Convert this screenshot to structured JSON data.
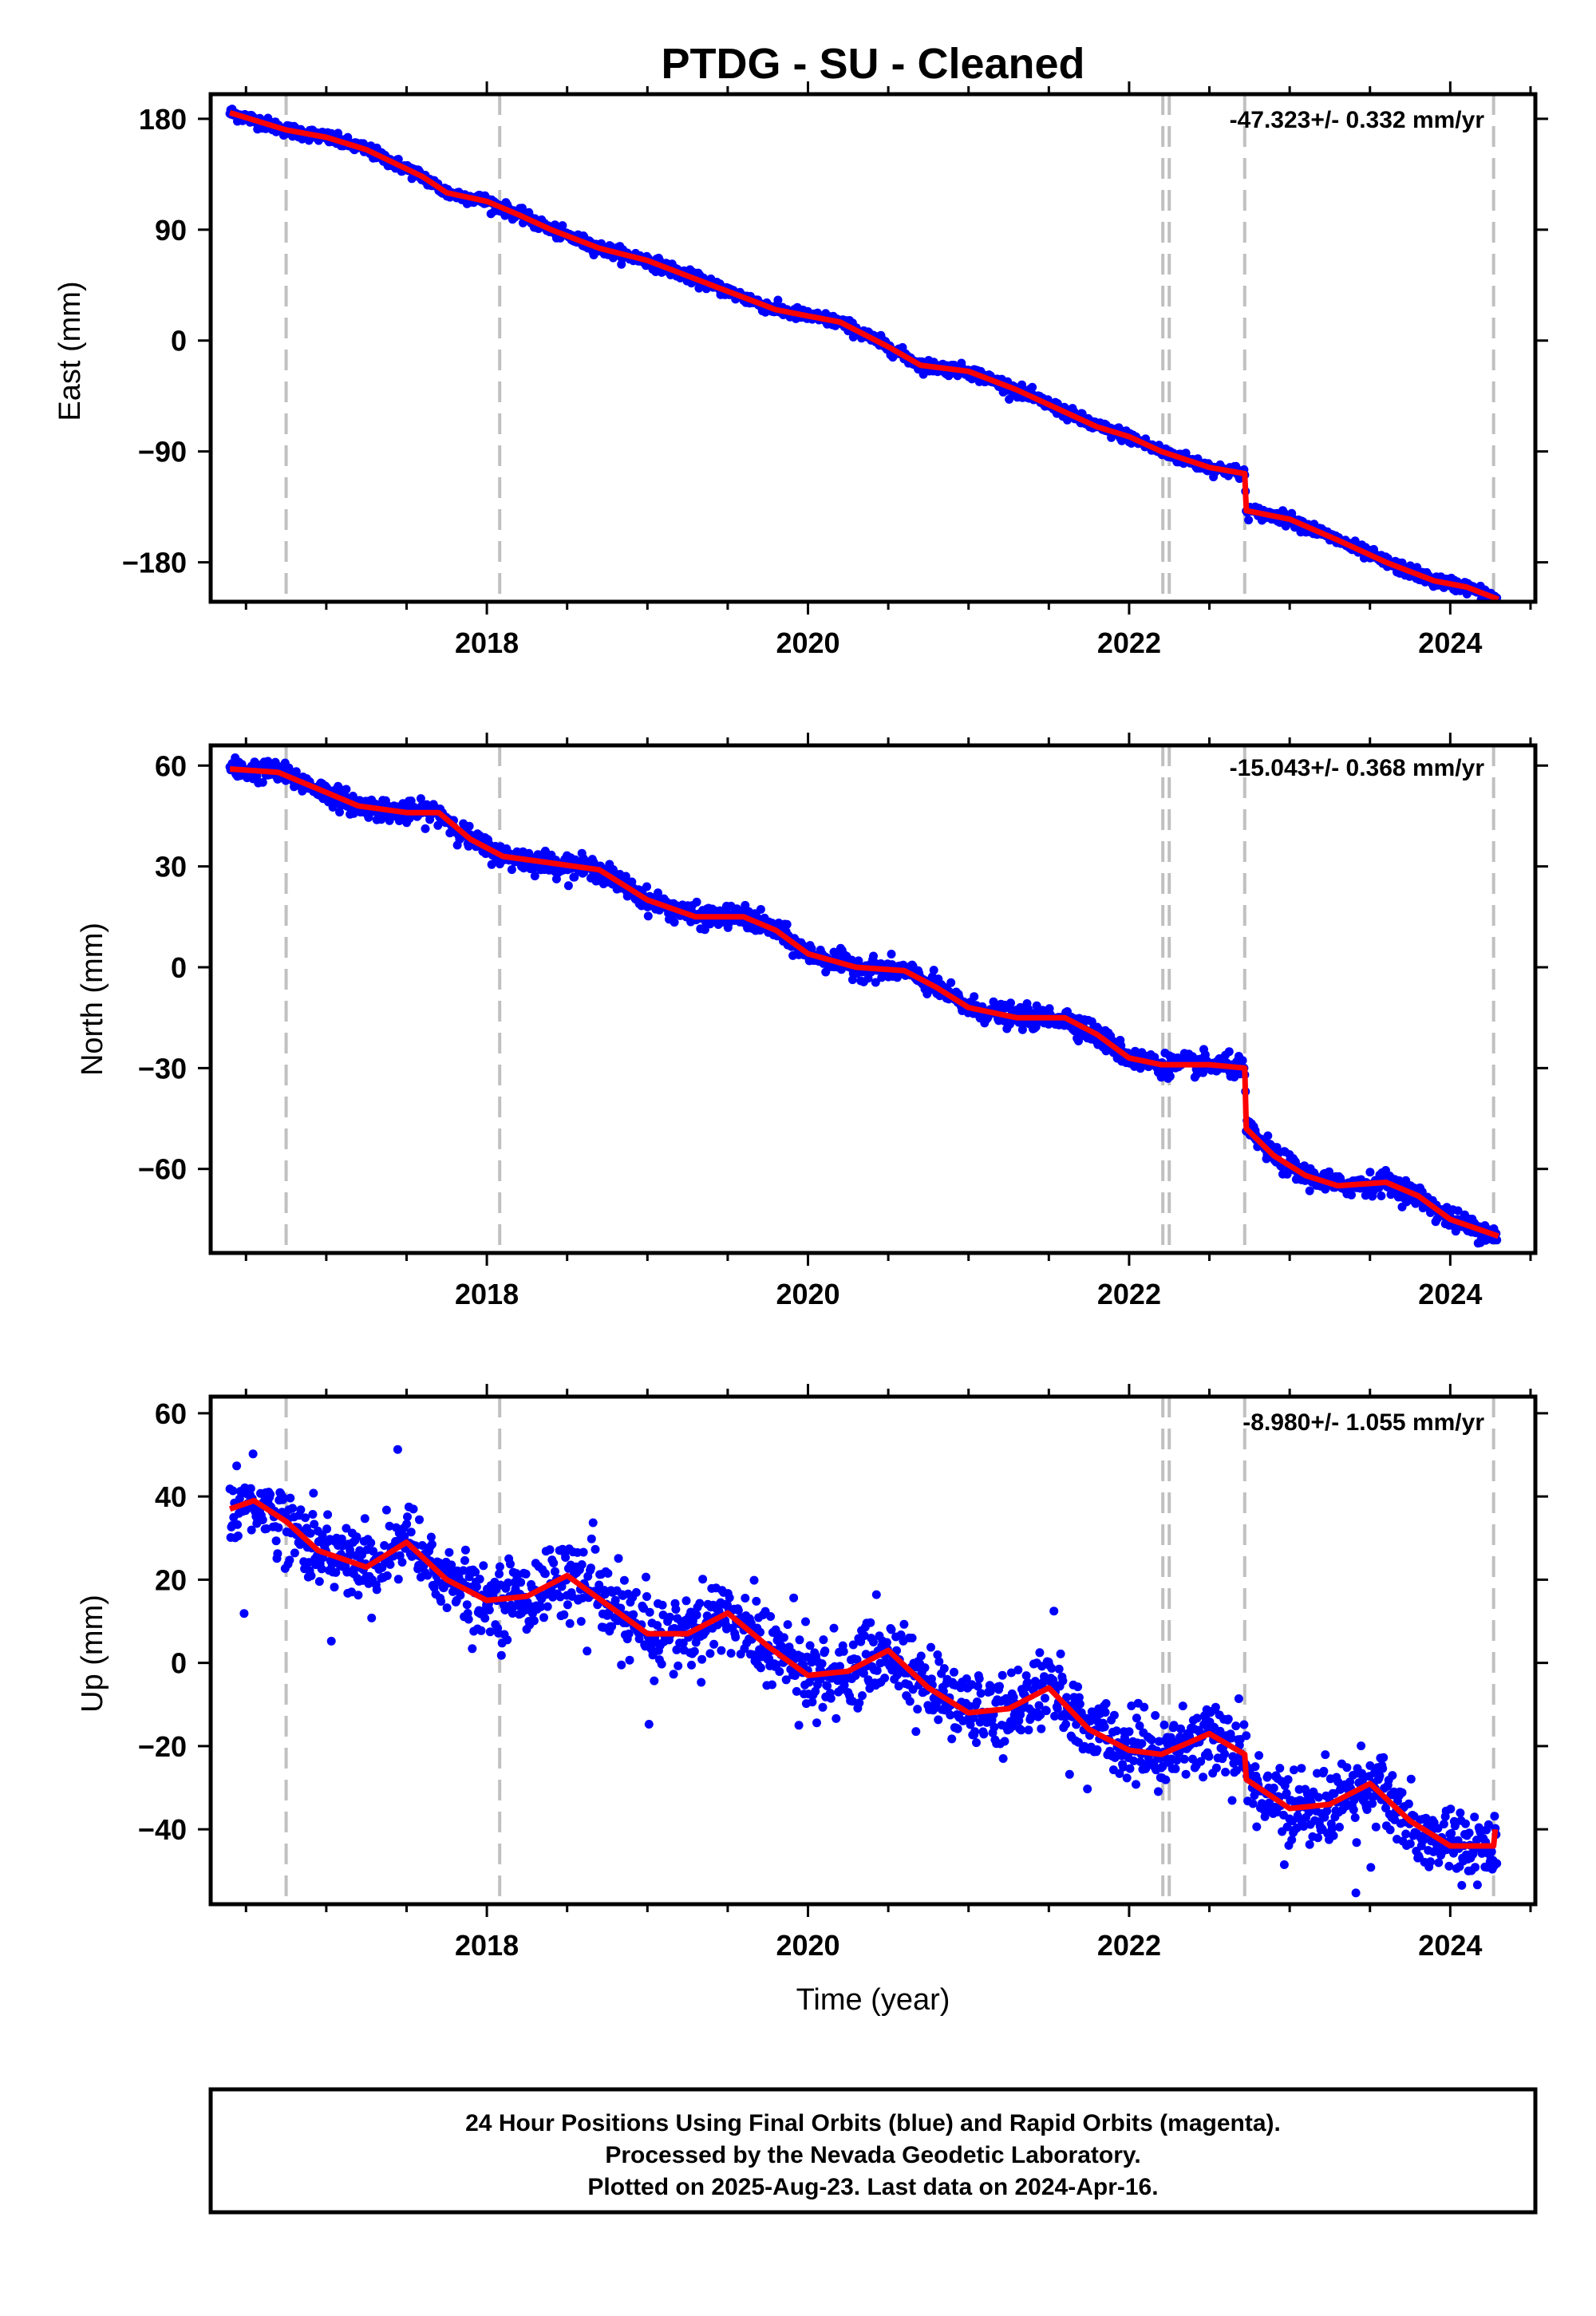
{
  "figure": {
    "title": "PTDG  - SU - Cleaned",
    "xlabel": "Time (year)",
    "footer": [
      "24 Hour Positions Using Final Orbits (blue) and Rapid Orbits (magenta).",
      "Processed by the Nevada Geodetic Laboratory.",
      "Plotted on 2025-Aug-23. Last data on 2024-Apr-16."
    ],
    "colors": {
      "points": "#0000ff",
      "fit": "#ff0000",
      "steps": "#c0c0c0",
      "frame": "#000000"
    }
  },
  "chart_data": [
    {
      "type": "scatter",
      "component": "East",
      "ylabel": "East (mm)",
      "rate_label": "-47.323+/- 0.332 mm/yr",
      "xlim": [
        2016.28,
        2024.53
      ],
      "ylim": [
        -212,
        200
      ],
      "xticks": [
        2018,
        2020,
        2022,
        2024
      ],
      "yticks": [
        180,
        90,
        0,
        -90,
        -180
      ],
      "ytick_labels": [
        "180",
        "90",
        "0",
        "−90",
        "−180"
      ],
      "step_epochs": [
        2016.75,
        2018.08,
        2022.21,
        2022.25,
        2022.72,
        2024.27
      ],
      "fit_knots": [
        [
          2016.4,
          185
        ],
        [
          2016.75,
          171
        ],
        [
          2017.0,
          165
        ],
        [
          2017.25,
          155
        ],
        [
          2017.6,
          133
        ],
        [
          2017.75,
          120
        ],
        [
          2018.0,
          113
        ],
        [
          2018.2,
          102
        ],
        [
          2018.4,
          90
        ],
        [
          2018.7,
          75
        ],
        [
          2019.0,
          65
        ],
        [
          2019.3,
          50
        ],
        [
          2019.6,
          35
        ],
        [
          2019.8,
          25
        ],
        [
          2020.0,
          20
        ],
        [
          2020.2,
          15
        ],
        [
          2020.5,
          -5
        ],
        [
          2020.7,
          -20
        ],
        [
          2021.0,
          -25
        ],
        [
          2021.3,
          -40
        ],
        [
          2021.6,
          -58
        ],
        [
          2021.8,
          -70
        ],
        [
          2022.0,
          -78
        ],
        [
          2022.2,
          -90
        ],
        [
          2022.5,
          -103
        ],
        [
          2022.72,
          -108
        ],
        [
          2022.73,
          -138
        ],
        [
          2023.0,
          -145
        ],
        [
          2023.3,
          -162
        ],
        [
          2023.6,
          -180
        ],
        [
          2023.9,
          -195
        ],
        [
          2024.1,
          -200
        ],
        [
          2024.3,
          -210
        ]
      ],
      "scatter_sigma": 2.5
    },
    {
      "type": "scatter",
      "component": "North",
      "ylabel": "North (mm)",
      "rate_label": "-15.043+/- 0.368 mm/yr",
      "xlim": [
        2016.28,
        2024.53
      ],
      "ylim": [
        -85,
        66
      ],
      "xticks": [
        2018,
        2020,
        2022,
        2024
      ],
      "yticks": [
        60,
        30,
        0,
        -30,
        -60
      ],
      "ytick_labels": [
        "60",
        "30",
        "0",
        "−30",
        "−60"
      ],
      "step_epochs": [
        2016.75,
        2018.08,
        2022.21,
        2022.25,
        2022.72,
        2024.27
      ],
      "fit_knots": [
        [
          2016.4,
          59
        ],
        [
          2016.7,
          58
        ],
        [
          2016.9,
          54
        ],
        [
          2017.2,
          48
        ],
        [
          2017.5,
          46
        ],
        [
          2017.7,
          46
        ],
        [
          2017.9,
          38
        ],
        [
          2018.1,
          33
        ],
        [
          2018.4,
          31
        ],
        [
          2018.7,
          29
        ],
        [
          2019.0,
          20
        ],
        [
          2019.3,
          15
        ],
        [
          2019.6,
          15
        ],
        [
          2019.8,
          11
        ],
        [
          2020.0,
          4
        ],
        [
          2020.3,
          0
        ],
        [
          2020.6,
          -1
        ],
        [
          2020.8,
          -6
        ],
        [
          2021.0,
          -12
        ],
        [
          2021.3,
          -15
        ],
        [
          2021.6,
          -15
        ],
        [
          2021.8,
          -20
        ],
        [
          2022.0,
          -27
        ],
        [
          2022.2,
          -29
        ],
        [
          2022.5,
          -29
        ],
        [
          2022.72,
          -30
        ],
        [
          2022.73,
          -48
        ],
        [
          2022.9,
          -56
        ],
        [
          2023.1,
          -62
        ],
        [
          2023.3,
          -65
        ],
        [
          2023.6,
          -64
        ],
        [
          2023.8,
          -68
        ],
        [
          2024.0,
          -75
        ],
        [
          2024.3,
          -80
        ]
      ],
      "scatter_sigma": 1.6
    },
    {
      "type": "scatter",
      "component": "Up",
      "ylabel": "Up (mm)",
      "rate_label": "-8.980+/- 1.055 mm/yr",
      "xlim": [
        2016.28,
        2024.53
      ],
      "ylim": [
        -58,
        64
      ],
      "xticks": [
        2018,
        2020,
        2022,
        2024
      ],
      "yticks": [
        60,
        40,
        20,
        0,
        -20,
        -40
      ],
      "ytick_labels": [
        "60",
        "40",
        "20",
        "0",
        "−20",
        "−40"
      ],
      "step_epochs": [
        2016.75,
        2018.08,
        2022.21,
        2022.25,
        2022.72,
        2024.27
      ],
      "fit_knots": [
        [
          2016.4,
          37
        ],
        [
          2016.55,
          39
        ],
        [
          2016.75,
          34
        ],
        [
          2016.95,
          27
        ],
        [
          2017.25,
          23
        ],
        [
          2017.5,
          29
        ],
        [
          2017.75,
          20
        ],
        [
          2018.0,
          15
        ],
        [
          2018.25,
          16
        ],
        [
          2018.5,
          21
        ],
        [
          2018.75,
          14
        ],
        [
          2019.0,
          7
        ],
        [
          2019.25,
          7
        ],
        [
          2019.5,
          12
        ],
        [
          2019.75,
          4
        ],
        [
          2020.0,
          -3
        ],
        [
          2020.25,
          -2
        ],
        [
          2020.5,
          3
        ],
        [
          2020.75,
          -6
        ],
        [
          2021.0,
          -12
        ],
        [
          2021.25,
          -11
        ],
        [
          2021.5,
          -6
        ],
        [
          2021.75,
          -16
        ],
        [
          2022.0,
          -21
        ],
        [
          2022.2,
          -22
        ],
        [
          2022.5,
          -17
        ],
        [
          2022.72,
          -22
        ],
        [
          2022.73,
          -28
        ],
        [
          2023.0,
          -35
        ],
        [
          2023.25,
          -34
        ],
        [
          2023.5,
          -29
        ],
        [
          2023.75,
          -38
        ],
        [
          2024.0,
          -44
        ],
        [
          2024.27,
          -44
        ],
        [
          2024.28,
          -40
        ]
      ],
      "scatter_sigma": 4.5
    }
  ]
}
